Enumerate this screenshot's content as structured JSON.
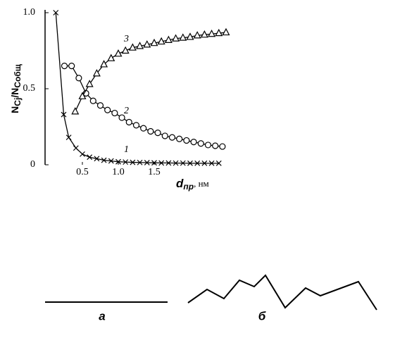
{
  "chart_data": {
    "type": "line",
    "y_label_parts": [
      "N",
      "Cj",
      "/N",
      "Cобщ"
    ],
    "x_label_parts": [
      "d",
      "пр",
      ", нм"
    ],
    "xlim": [
      0,
      2.5
    ],
    "ylim": [
      0,
      1
    ],
    "xticks": [
      0.5,
      {
        "value": 1,
        "label": "1.0"
      },
      1.5
    ],
    "yticks": [
      0,
      0.5,
      {
        "value": 1,
        "label": "1.0"
      }
    ],
    "series": [
      {
        "name": "1",
        "color": "#000",
        "marker": "x",
        "x": [
          0.13,
          0.24,
          0.31,
          0.41,
          0.5,
          0.6,
          0.7,
          0.8,
          0.9,
          1.0,
          1.1,
          1.2,
          1.3,
          1.4,
          1.5,
          1.6,
          1.7,
          1.8,
          1.9,
          2.0,
          2.1,
          2.2,
          2.3,
          2.4
        ],
        "values": [
          1.0,
          0.33,
          0.18,
          0.11,
          0.07,
          0.05,
          0.04,
          0.03,
          0.025,
          0.02,
          0.018,
          0.016,
          0.015,
          0.014,
          0.013,
          0.012,
          0.012,
          0.011,
          0.011,
          0.01,
          0.01,
          0.01,
          0.01,
          0.01
        ]
      },
      {
        "name": "2",
        "color": "#000",
        "marker": "o",
        "x": [
          0.25,
          0.35,
          0.45,
          0.55,
          0.65,
          0.75,
          0.85,
          0.95,
          1.05,
          1.15,
          1.25,
          1.35,
          1.45,
          1.55,
          1.65,
          1.75,
          1.85,
          1.95,
          2.05,
          2.15,
          2.25,
          2.35,
          2.45
        ],
        "values": [
          0.65,
          0.65,
          0.57,
          0.47,
          0.42,
          0.39,
          0.36,
          0.34,
          0.31,
          0.28,
          0.26,
          0.24,
          0.22,
          0.21,
          0.19,
          0.18,
          0.17,
          0.16,
          0.15,
          0.14,
          0.13,
          0.125,
          0.12
        ]
      },
      {
        "name": "3",
        "color": "#000",
        "marker": "triangle",
        "x": [
          0.4,
          0.5,
          0.6,
          0.7,
          0.8,
          0.9,
          1.0,
          1.1,
          1.2,
          1.3,
          1.4,
          1.5,
          1.6,
          1.7,
          1.8,
          1.9,
          2.0,
          2.1,
          2.2,
          2.3,
          2.4,
          2.5
        ],
        "values": [
          0.35,
          0.45,
          0.53,
          0.6,
          0.66,
          0.7,
          0.73,
          0.75,
          0.77,
          0.78,
          0.79,
          0.8,
          0.81,
          0.82,
          0.83,
          0.835,
          0.84,
          0.85,
          0.855,
          0.86,
          0.865,
          0.87
        ]
      }
    ]
  },
  "figure_labels": [
    "а",
    "б"
  ]
}
